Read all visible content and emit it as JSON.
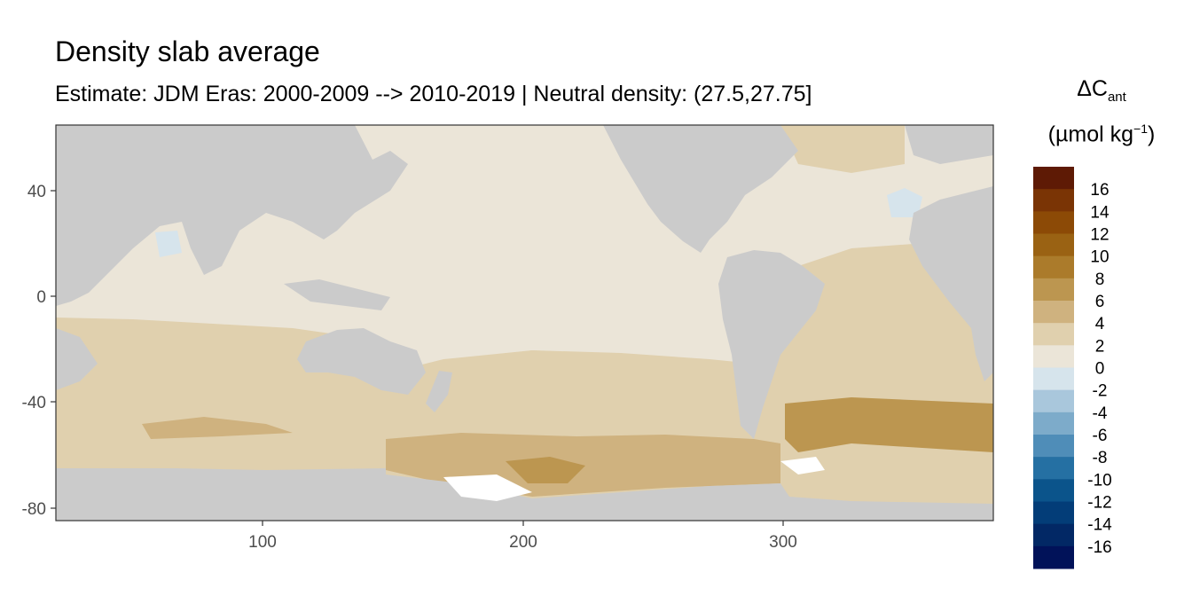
{
  "title": "Density slab average",
  "subtitle": "Estimate: JDM Eras: 2000-2009 --> 2010-2019 | Neutral density: (27.5,27.75]",
  "x_ticks": [
    "100",
    "200",
    "300"
  ],
  "y_ticks": [
    "40",
    "0",
    "-40",
    "-80"
  ],
  "legend": {
    "title_symbol": "ΔC",
    "title_sub": "ant",
    "unit_pre": "(µmol kg",
    "unit_sup": "−1",
    "unit_post": ")",
    "labels": [
      "16",
      "14",
      "12",
      "10",
      "8",
      "6",
      "4",
      "2",
      "0",
      "-2",
      "-4",
      "-6",
      "-8",
      "-10",
      "-12",
      "-14",
      "-16"
    ],
    "colors": [
      "#5e1a05",
      "#7a3405",
      "#8c4a06",
      "#9a6213",
      "#ab7b2b",
      "#bc9650",
      "#cfb27f",
      "#e0d0ae",
      "#ebe5d8",
      "#d6e4ec",
      "#a9c7dc",
      "#7dabca",
      "#4f8db8",
      "#2570a3",
      "#0b548b",
      "#033d78",
      "#022865",
      "#011259"
    ]
  },
  "colors": {
    "land": "#cbcbcb",
    "panel_border": "#333333",
    "ocean_near_zero": "#ebe5d8",
    "ocean_2_4": "#e0d0ae",
    "ocean_4_6": "#cfb27f",
    "ocean_6_8": "#bc9650",
    "negative_small": "#d6e4ec"
  }
}
